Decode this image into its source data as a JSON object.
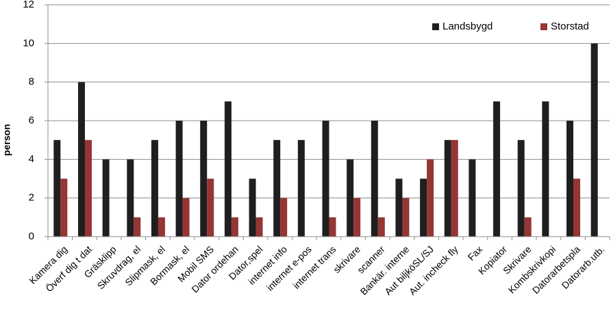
{
  "chart_data": {
    "type": "bar",
    "title": "",
    "xlabel": "",
    "ylabel": "person",
    "ylim": [
      0,
      12
    ],
    "yticks": [
      0,
      2,
      4,
      6,
      8,
      10,
      12
    ],
    "grid": true,
    "legend_position": "top-right",
    "categories": [
      "Kamera dig",
      "Överf dig t dat",
      "Gräsklipp",
      "Skruvdrag, el",
      "Slipmask, el",
      "Bormask, el",
      "Mobil SMS",
      "Dator ordehan",
      "Dator,spel",
      "internet info",
      "internet e-pos",
      "internet trans",
      "skrivare",
      "scanner",
      "Bankär. interne",
      "Aut biljköSL/SJ",
      "Aut. incheck fly",
      "Fax",
      "Kopiator",
      "Skrivare",
      "Kombskrivkopi",
      "Datorarbetspla",
      "Datorarb.utb."
    ],
    "series": [
      {
        "name": "Landsbygd",
        "color": "#1f1f1f",
        "values": [
          5,
          8,
          4,
          4,
          5,
          6,
          6,
          7,
          3,
          5,
          5,
          6,
          4,
          6,
          3,
          3,
          5,
          4,
          7,
          5,
          7,
          6,
          10
        ]
      },
      {
        "name": "Storstad",
        "color": "#943634",
        "values": [
          3,
          5,
          0,
          1,
          1,
          2,
          3,
          1,
          1,
          2,
          0,
          1,
          2,
          1,
          2,
          4,
          5,
          0,
          0,
          1,
          0,
          3,
          0
        ]
      }
    ]
  },
  "colors": {
    "grid": "#8c8c8c",
    "axis": "#8c8c8c"
  }
}
